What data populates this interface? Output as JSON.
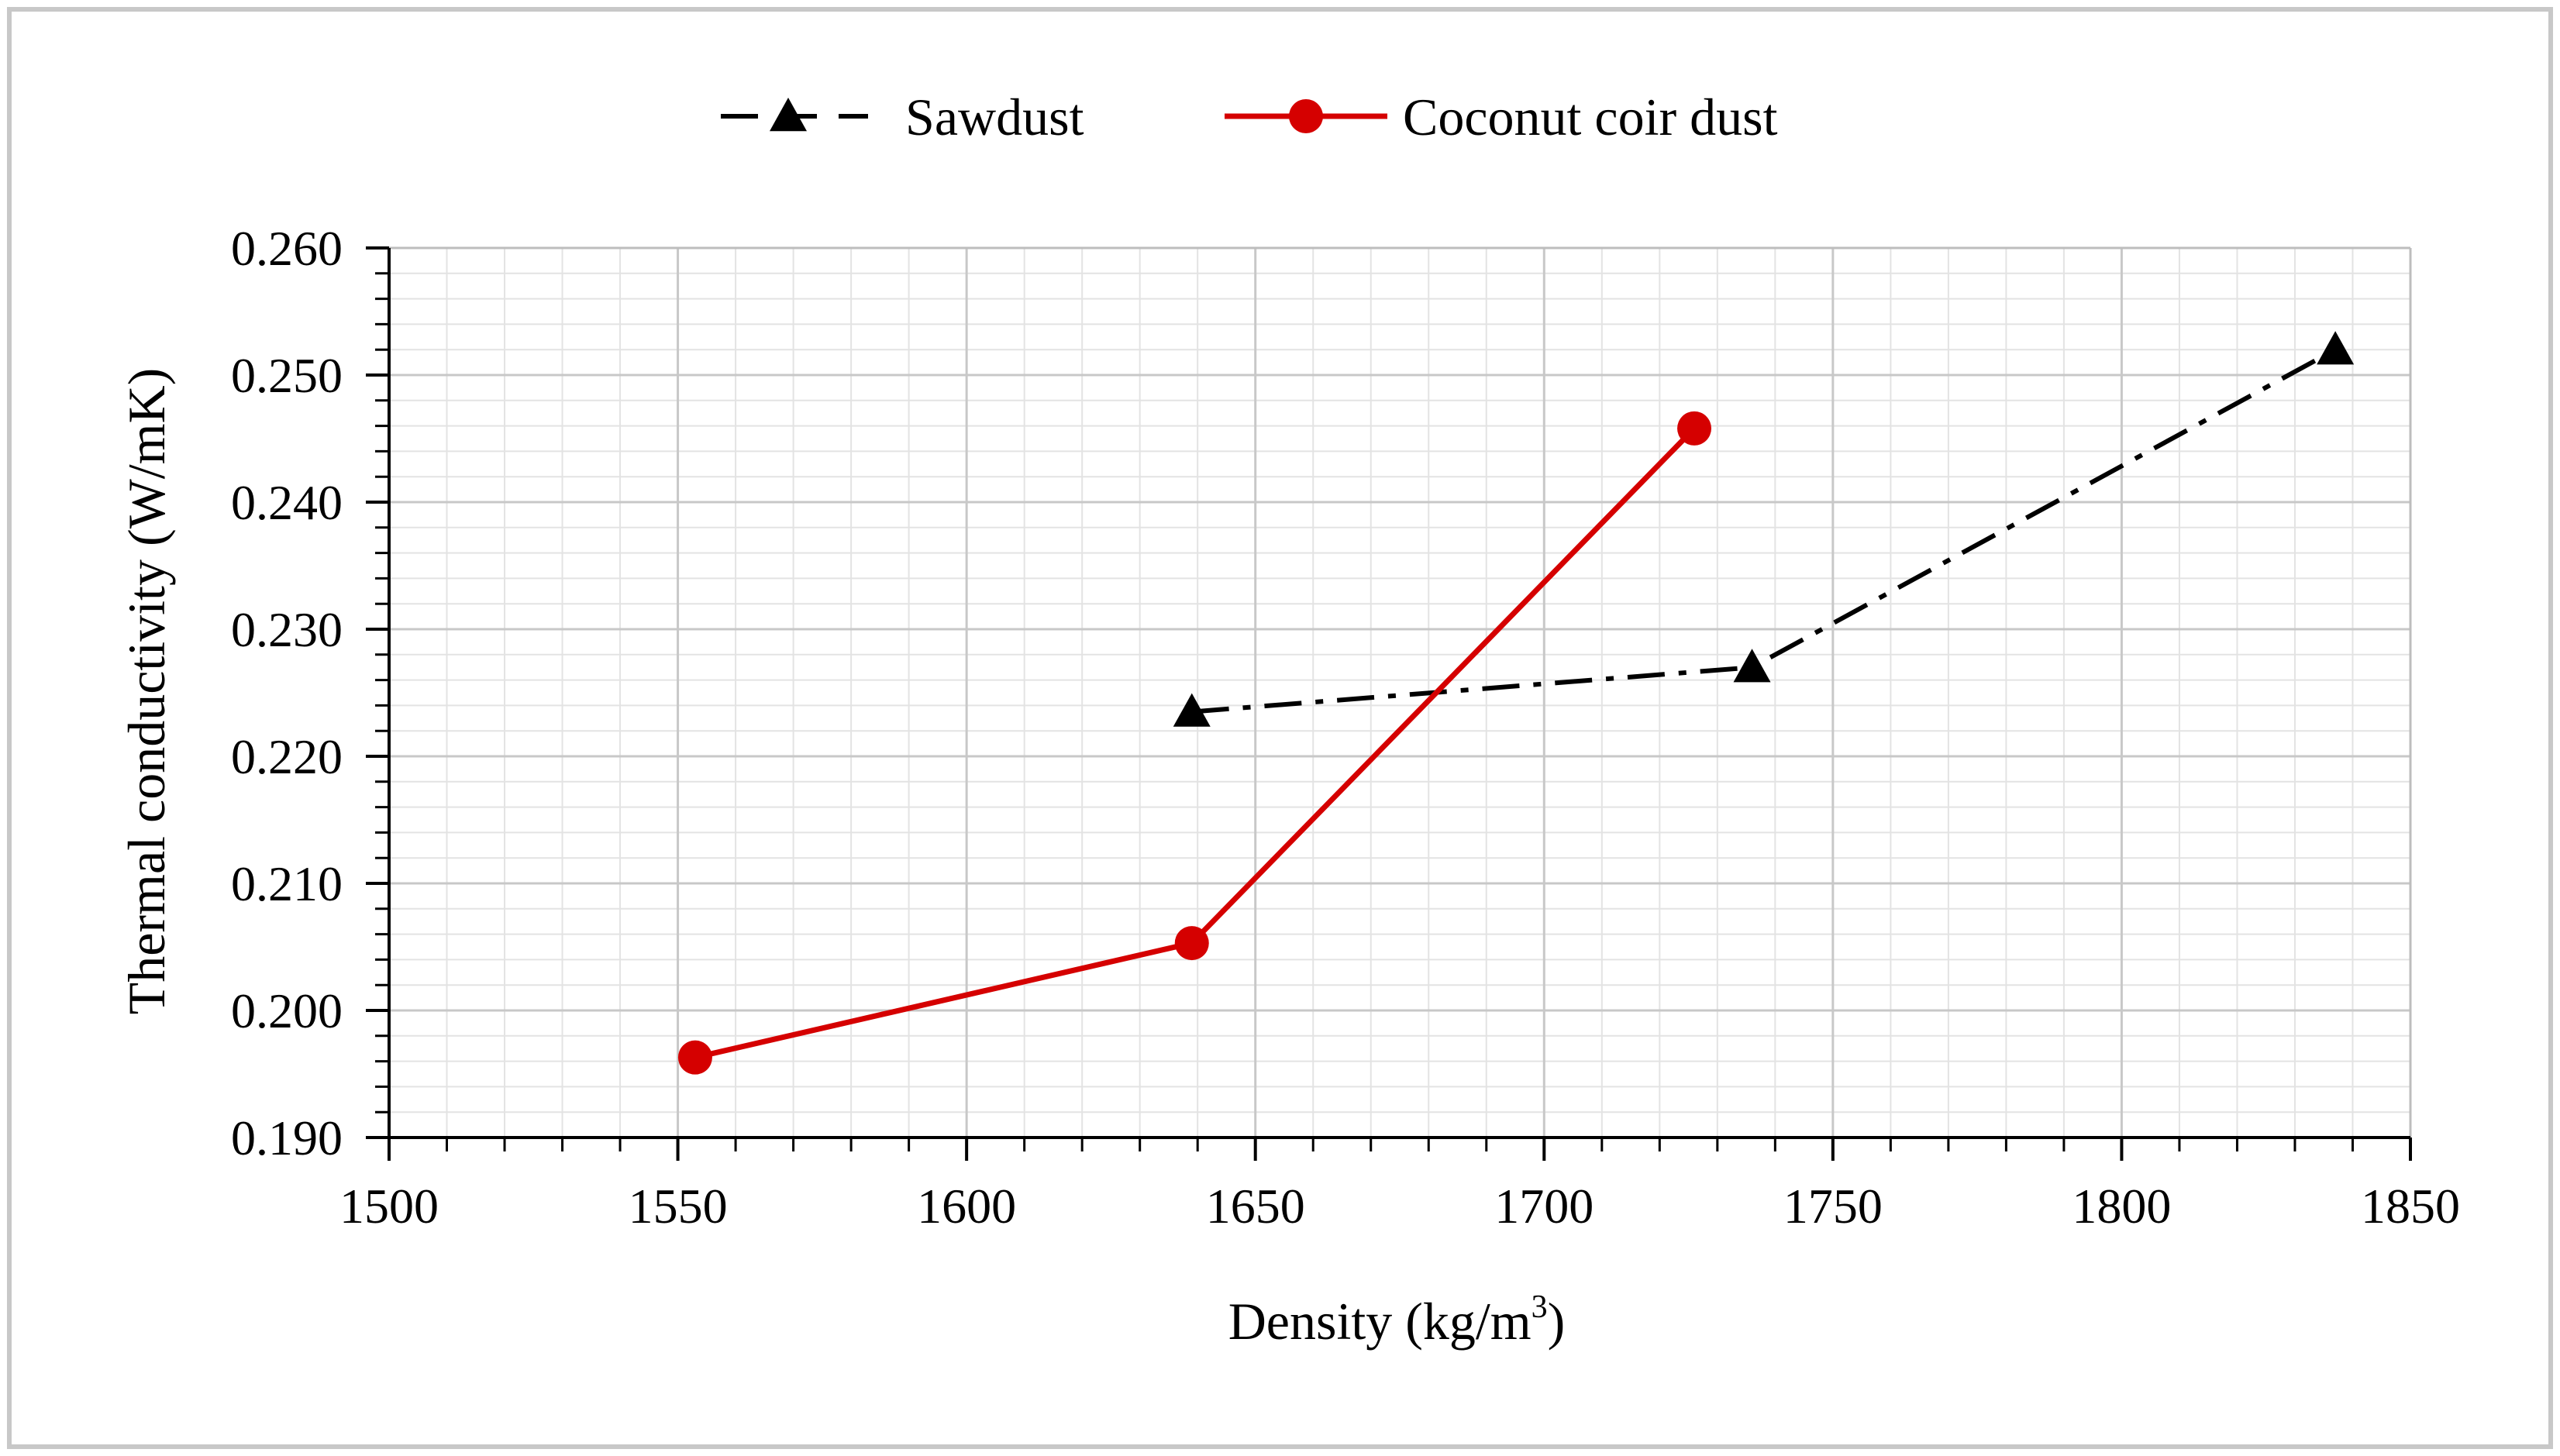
{
  "chart_data": {
    "type": "line",
    "title": "",
    "xlabel": "Density (kg/m",
    "xlabel_sup": "3",
    "xlabel_suffix": ")",
    "ylabel": "Thermal conductivity (W/mK)",
    "xlim": [
      1500,
      1850
    ],
    "ylim": [
      0.19,
      0.26
    ],
    "x_major_ticks": [
      1500,
      1550,
      1600,
      1650,
      1700,
      1750,
      1800,
      1850
    ],
    "x_tick_labels": [
      "1500",
      "1550",
      "1600",
      "1650",
      "1700",
      "1750",
      "1800",
      "1850"
    ],
    "x_minor_step": 10,
    "y_major_ticks": [
      0.19,
      0.2,
      0.21,
      0.22,
      0.23,
      0.24,
      0.25,
      0.26
    ],
    "y_tick_labels": [
      "0.190",
      "0.200",
      "0.210",
      "0.220",
      "0.230",
      "0.240",
      "0.250",
      "0.260"
    ],
    "y_minor_step": 0.002,
    "grid": true,
    "legend_position": "top-center",
    "series": [
      {
        "name": "Sawdust",
        "color": "#000000",
        "line_style": "dash-dot",
        "marker": "triangle",
        "x": [
          1639,
          1736,
          1837
        ],
        "y": [
          0.2235,
          0.227,
          0.252
        ]
      },
      {
        "name": "Coconut coir dust",
        "color": "#d50000",
        "line_style": "solid",
        "marker": "circle",
        "x": [
          1553,
          1639,
          1726
        ],
        "y": [
          0.1963,
          0.2053,
          0.2458
        ]
      }
    ]
  }
}
